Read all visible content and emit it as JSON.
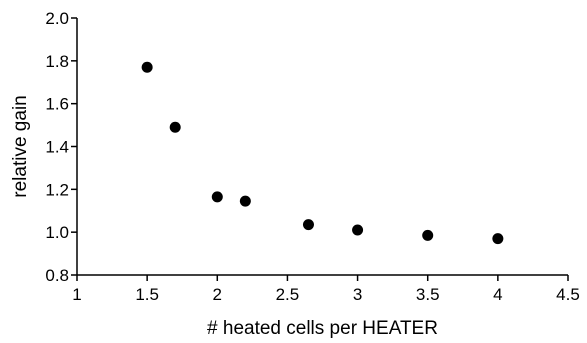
{
  "chart_data": {
    "type": "scatter",
    "title": "",
    "xlabel": "# heated cells per HEATER",
    "ylabel": "relative gain",
    "xlim": [
      1,
      4.5
    ],
    "ylim": [
      0.8,
      2.0
    ],
    "x_ticks": [
      1,
      1.5,
      2,
      2.5,
      3,
      3.5,
      4,
      4.5
    ],
    "x_tick_labels": [
      "1",
      "1.5",
      "2",
      "2.5",
      "3",
      "3.5",
      "4",
      "4.5"
    ],
    "y_ticks": [
      0.8,
      1.0,
      1.2,
      1.4,
      1.6,
      1.8,
      2.0
    ],
    "y_tick_labels": [
      "0.8",
      "1.0",
      "1.2",
      "1.4",
      "1.6",
      "1.8",
      "2.0"
    ],
    "grid": false,
    "legend": "none",
    "marker_color": "#000000",
    "series": [
      {
        "points": [
          {
            "x": 1.5,
            "y": 1.77
          },
          {
            "x": 1.7,
            "y": 1.49
          },
          {
            "x": 2.0,
            "y": 1.165
          },
          {
            "x": 2.2,
            "y": 1.145
          },
          {
            "x": 2.65,
            "y": 1.035
          },
          {
            "x": 3.0,
            "y": 1.01
          },
          {
            "x": 3.5,
            "y": 0.985
          },
          {
            "x": 4.0,
            "y": 0.97
          }
        ]
      }
    ]
  }
}
